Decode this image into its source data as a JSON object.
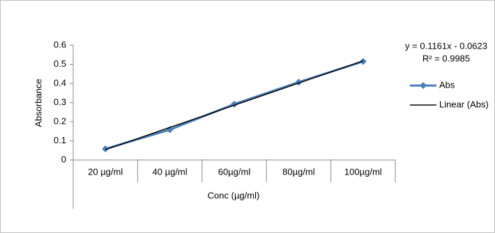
{
  "chart_data": {
    "type": "line",
    "x_label": "Conc (µg/ml)",
    "y_label": "Absorbance",
    "categories": [
      "20 µg/ml",
      "40 µg/ml",
      "60µg/ml",
      "80µg/ml",
      "100µg/ml"
    ],
    "series": [
      {
        "name": "Abs",
        "color": "#4a7ebb",
        "values": [
          0.058,
          0.158,
          0.292,
          0.407,
          0.515
        ]
      },
      {
        "name": "Linear (Abs)",
        "color": "#000000",
        "values": [
          0.054,
          0.17,
          0.286,
          0.402,
          0.518
        ]
      }
    ],
    "annotations": [
      "y = 0.1161x - 0.0623",
      "R² = 0.9985"
    ],
    "ylim": [
      0,
      0.6
    ],
    "yticks": [
      0,
      0.1,
      0.2,
      0.3,
      0.4,
      0.5,
      0.6
    ],
    "grid": false,
    "legend": "right"
  }
}
